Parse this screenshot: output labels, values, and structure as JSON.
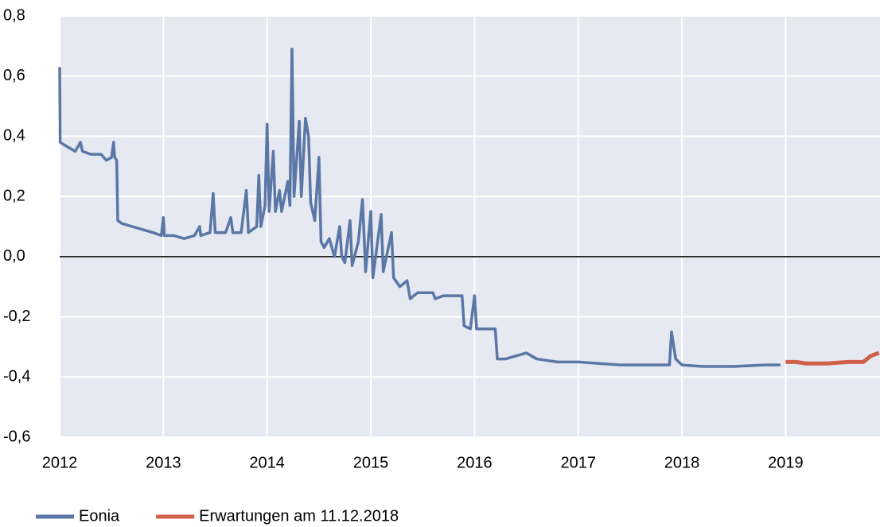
{
  "chart_data": {
    "type": "line",
    "xlim": [
      2012,
      2019.91
    ],
    "xticks": [
      2012,
      2013,
      2014,
      2015,
      2016,
      2017,
      2018,
      2019
    ],
    "ylim": [
      -0.6,
      0.8
    ],
    "yticks": [
      {
        "value": -0.6,
        "label": "-0,6"
      },
      {
        "value": -0.4,
        "label": "-0,4"
      },
      {
        "value": -0.2,
        "label": "-0,2"
      },
      {
        "value": 0,
        "label": "0,0"
      },
      {
        "value": 0.2,
        "label": "0,2"
      },
      {
        "value": 0.4,
        "label": "0,4"
      },
      {
        "value": 0.6,
        "label": "0,6"
      },
      {
        "value": 0.8,
        "label": "0,8"
      }
    ],
    "grid": true,
    "legend": "bottom-left",
    "series": [
      {
        "name": "Eonia",
        "color": "#5a77a6",
        "x": [
          2012.0,
          2012.005,
          2012.05,
          2012.1,
          2012.15,
          2012.2,
          2012.22,
          2012.3,
          2012.4,
          2012.45,
          2012.5,
          2012.52,
          2012.53,
          2012.55,
          2012.56,
          2012.6,
          2012.7,
          2012.8,
          2012.9,
          2012.98,
          2013.0,
          2013.01,
          2013.1,
          2013.2,
          2013.3,
          2013.35,
          2013.36,
          2013.45,
          2013.48,
          2013.5,
          2013.6,
          2013.65,
          2013.67,
          2013.75,
          2013.8,
          2013.82,
          2013.9,
          2013.92,
          2013.94,
          2013.98,
          2014.0,
          2014.02,
          2014.06,
          2014.08,
          2014.12,
          2014.14,
          2014.2,
          2014.22,
          2014.24,
          2014.26,
          2014.31,
          2014.33,
          2014.37,
          2014.4,
          2014.42,
          2014.46,
          2014.5,
          2014.52,
          2014.55,
          2014.6,
          2014.65,
          2014.7,
          2014.72,
          2014.75,
          2014.8,
          2014.82,
          2014.88,
          2014.92,
          2014.95,
          2015.0,
          2015.02,
          2015.1,
          2015.12,
          2015.2,
          2015.22,
          2015.28,
          2015.35,
          2015.38,
          2015.45,
          2015.6,
          2015.62,
          2015.7,
          2015.8,
          2015.88,
          2015.9,
          2015.96,
          2016.0,
          2016.02,
          2016.1,
          2016.2,
          2016.22,
          2016.3,
          2016.4,
          2016.5,
          2016.6,
          2016.8,
          2017.0,
          2017.2,
          2017.4,
          2017.6,
          2017.8,
          2017.88,
          2017.9,
          2017.94,
          2018.0,
          2018.2,
          2018.5,
          2018.8,
          2018.95
        ],
        "values": [
          0.63,
          0.38,
          0.37,
          0.36,
          0.35,
          0.38,
          0.35,
          0.34,
          0.34,
          0.32,
          0.33,
          0.38,
          0.33,
          0.32,
          0.12,
          0.11,
          0.1,
          0.09,
          0.08,
          0.07,
          0.13,
          0.07,
          0.07,
          0.06,
          0.07,
          0.1,
          0.07,
          0.08,
          0.21,
          0.08,
          0.08,
          0.13,
          0.08,
          0.08,
          0.22,
          0.08,
          0.1,
          0.27,
          0.1,
          0.17,
          0.44,
          0.15,
          0.35,
          0.15,
          0.22,
          0.15,
          0.25,
          0.17,
          0.69,
          0.2,
          0.45,
          0.2,
          0.46,
          0.4,
          0.18,
          0.12,
          0.33,
          0.05,
          0.03,
          0.06,
          0.0,
          0.1,
          0.0,
          -0.02,
          0.12,
          -0.03,
          0.05,
          0.19,
          -0.05,
          0.15,
          -0.07,
          0.14,
          -0.05,
          0.08,
          -0.07,
          -0.1,
          -0.08,
          -0.14,
          -0.12,
          -0.12,
          -0.14,
          -0.13,
          -0.13,
          -0.13,
          -0.23,
          -0.24,
          -0.13,
          -0.24,
          -0.24,
          -0.24,
          -0.34,
          -0.34,
          -0.33,
          -0.32,
          -0.34,
          -0.35,
          -0.35,
          -0.355,
          -0.36,
          -0.36,
          -0.36,
          -0.36,
          -0.25,
          -0.34,
          -0.36,
          -0.365,
          -0.365,
          -0.36,
          -0.36
        ]
      },
      {
        "name": "Erwartungen am 11.12.2018",
        "color": "#d0604a",
        "x": [
          2019.0,
          2019.1,
          2019.2,
          2019.4,
          2019.6,
          2019.75,
          2019.82,
          2019.9
        ],
        "values": [
          -0.35,
          -0.35,
          -0.355,
          -0.355,
          -0.35,
          -0.35,
          -0.33,
          -0.32
        ]
      }
    ]
  }
}
